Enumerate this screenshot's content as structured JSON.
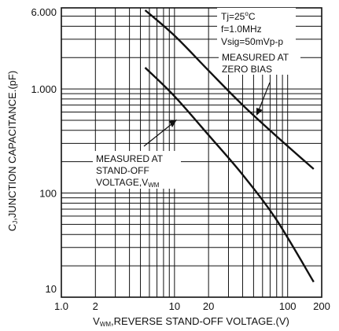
{
  "chart_data": {
    "type": "line",
    "x_scale": "log",
    "y_scale": "log",
    "xlim": [
      1,
      200
    ],
    "ylim": [
      10,
      6000
    ],
    "grid": true,
    "xlabel": {
      "prefix": "V",
      "subscript": "WM",
      "rest": ",REVERSE STAND-OFF VOLTAGE.(V)"
    },
    "ylabel": {
      "prefix": "C",
      "subscript": "J",
      "rest": ",JUNCTION CAPACITANCE.(pF)"
    },
    "x_ticks": [
      {
        "value": 1,
        "label": "1.0"
      },
      {
        "value": 2,
        "label": "2"
      },
      {
        "value": 10,
        "label": "10"
      },
      {
        "value": 20,
        "label": "20"
      },
      {
        "value": 100,
        "label": "100"
      },
      {
        "value": 200,
        "label": "200"
      }
    ],
    "y_ticks": [
      {
        "value": 10,
        "label": "10"
      },
      {
        "value": 100,
        "label": "100"
      },
      {
        "value": 1000,
        "label": "1.000"
      },
      {
        "value": 6000,
        "label": "6.000"
      }
    ],
    "series": [
      {
        "name": "MEASURED AT ZERO BIAS",
        "x": [
          5.5,
          10,
          20,
          40,
          80,
          170
        ],
        "y": [
          5700,
          3250,
          1500,
          700,
          350,
          170
        ]
      },
      {
        "name": "MEASURED AT STAND-OFF VOLTAGE",
        "x": [
          5.5,
          10,
          20,
          40,
          80,
          170
        ],
        "y": [
          1600,
          850,
          360,
          150,
          55,
          14
        ]
      }
    ],
    "conditions": {
      "tj": {
        "prefix": "Tj=25",
        "sup": "o",
        "rest": "C"
      },
      "freq": "f=1.0MHz",
      "vsig": "Vsig=50mVp-p"
    },
    "annotations": {
      "zero_bias": {
        "line1": "MEASURED AT",
        "line2": "ZERO BIAS"
      },
      "standoff": {
        "line1": "MEASURED AT",
        "line2": "STAND-OFF",
        "line3_prefix": "VOLTAGE,V",
        "line3_sub": "WM"
      }
    }
  }
}
